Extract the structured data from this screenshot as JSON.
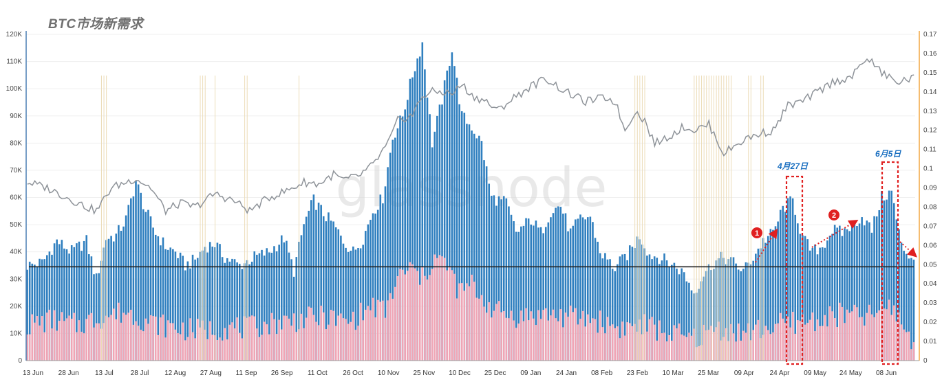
{
  "title": "BTC市场新需求",
  "watermark": "glassnode",
  "chart_data": {
    "type": "bar",
    "x_labels": [
      "13 Jun",
      "28 Jun",
      "13 Jul",
      "28 Jul",
      "12 Aug",
      "27 Aug",
      "11 Sep",
      "26 Sep",
      "11 Oct",
      "26 Oct",
      "10 Nov",
      "25 Nov",
      "10 Dec",
      "25 Dec",
      "09 Jan",
      "24 Jan",
      "08 Feb",
      "23 Feb",
      "10 Mar",
      "25 Mar",
      "09 Apr",
      "24 Apr",
      "09 May",
      "24 May",
      "08 Jun"
    ],
    "y_left": {
      "min": 0,
      "max": 120000,
      "ticks": [
        "0",
        "10K",
        "20K",
        "30K",
        "40K",
        "50K",
        "60K",
        "70K",
        "80K",
        "90K",
        "100K",
        "110K",
        "120K"
      ]
    },
    "y_right": {
      "min": 0,
      "max": 0.17,
      "ticks": [
        "0",
        "0.01",
        "0.02",
        "0.03",
        "0.04",
        "0.05",
        "0.06",
        "0.07",
        "0.08",
        "0.09",
        "0.1",
        "0.11",
        "0.12",
        "0.13",
        "0.14",
        "0.15",
        "0.16",
        "0.17"
      ]
    },
    "baseline_value": 34500,
    "series": [
      {
        "color": "#2f7fbf",
        "anchors": [
          [
            0,
            35000
          ],
          [
            6,
            36000
          ],
          [
            12,
            44000
          ],
          [
            18,
            40000
          ],
          [
            24,
            44000
          ],
          [
            28,
            30000
          ],
          [
            32,
            45000
          ],
          [
            36,
            46000
          ],
          [
            40,
            52000
          ],
          [
            44,
            66000
          ],
          [
            48,
            55000
          ],
          [
            52,
            47000
          ],
          [
            56,
            42000
          ],
          [
            60,
            40000
          ],
          [
            64,
            35000
          ],
          [
            68,
            37000
          ],
          [
            72,
            42000
          ],
          [
            76,
            43000
          ],
          [
            80,
            38000
          ],
          [
            86,
            35000
          ],
          [
            92,
            38000
          ],
          [
            98,
            40000
          ],
          [
            104,
            45000
          ],
          [
            108,
            33000
          ],
          [
            112,
            50000
          ],
          [
            116,
            59000
          ],
          [
            120,
            54000
          ],
          [
            124,
            50000
          ],
          [
            128,
            44000
          ],
          [
            132,
            40000
          ],
          [
            136,
            45000
          ],
          [
            140,
            55000
          ],
          [
            144,
            60000
          ],
          [
            148,
            82000
          ],
          [
            152,
            90000
          ],
          [
            156,
            105000
          ],
          [
            160,
            117000
          ],
          [
            164,
            80000
          ],
          [
            168,
            96000
          ],
          [
            172,
            115000
          ],
          [
            176,
            90000
          ],
          [
            180,
            86000
          ],
          [
            184,
            80000
          ],
          [
            188,
            60000
          ],
          [
            194,
            58000
          ],
          [
            198,
            47000
          ],
          [
            204,
            52000
          ],
          [
            208,
            47000
          ],
          [
            212,
            55000
          ],
          [
            216,
            57000
          ],
          [
            220,
            47000
          ],
          [
            224,
            52000
          ],
          [
            228,
            53000
          ],
          [
            232,
            40000
          ],
          [
            238,
            34000
          ],
          [
            244,
            40000
          ],
          [
            248,
            46000
          ],
          [
            252,
            39000
          ],
          [
            256,
            38000
          ],
          [
            262,
            35000
          ],
          [
            266,
            32000
          ],
          [
            270,
            25000
          ],
          [
            274,
            32000
          ],
          [
            278,
            36000
          ],
          [
            282,
            38000
          ],
          [
            286,
            36000
          ],
          [
            290,
            33000
          ],
          [
            294,
            38000
          ],
          [
            298,
            44000
          ],
          [
            302,
            47000
          ],
          [
            306,
            56000
          ],
          [
            310,
            59000
          ],
          [
            314,
            45000
          ],
          [
            318,
            40000
          ],
          [
            322,
            42000
          ],
          [
            326,
            48000
          ],
          [
            330,
            47000
          ],
          [
            334,
            50000
          ],
          [
            338,
            53000
          ],
          [
            342,
            48000
          ],
          [
            346,
            60000
          ],
          [
            350,
            62000
          ],
          [
            354,
            42000
          ],
          [
            358,
            38000
          ]
        ]
      },
      {
        "color": "#f0a5b5",
        "anchors": [
          [
            0,
            13000
          ],
          [
            10,
            15000
          ],
          [
            20,
            13000
          ],
          [
            30,
            16000
          ],
          [
            40,
            18000
          ],
          [
            50,
            14000
          ],
          [
            60,
            12000
          ],
          [
            70,
            11000
          ],
          [
            80,
            12000
          ],
          [
            90,
            12000
          ],
          [
            100,
            14000
          ],
          [
            110,
            15000
          ],
          [
            120,
            16000
          ],
          [
            130,
            14000
          ],
          [
            140,
            20000
          ],
          [
            145,
            18000
          ],
          [
            150,
            30000
          ],
          [
            155,
            34000
          ],
          [
            160,
            30000
          ],
          [
            165,
            38000
          ],
          [
            170,
            35000
          ],
          [
            175,
            25000
          ],
          [
            180,
            28000
          ],
          [
            185,
            22000
          ],
          [
            190,
            18000
          ],
          [
            200,
            16000
          ],
          [
            210,
            17000
          ],
          [
            220,
            16000
          ],
          [
            230,
            15000
          ],
          [
            240,
            12000
          ],
          [
            250,
            13000
          ],
          [
            260,
            10000
          ],
          [
            270,
            8000
          ],
          [
            280,
            12000
          ],
          [
            290,
            10000
          ],
          [
            300,
            12000
          ],
          [
            310,
            14000
          ],
          [
            320,
            15000
          ],
          [
            330,
            17000
          ],
          [
            340,
            16000
          ],
          [
            350,
            20000
          ],
          [
            358,
            8000
          ]
        ]
      },
      {
        "color": "#8e9399",
        "anchors": [
          [
            0,
            0.093
          ],
          [
            8,
            0.09
          ],
          [
            16,
            0.085
          ],
          [
            24,
            0.08
          ],
          [
            28,
            0.078
          ],
          [
            34,
            0.09
          ],
          [
            44,
            0.095
          ],
          [
            50,
            0.09
          ],
          [
            56,
            0.078
          ],
          [
            62,
            0.082
          ],
          [
            68,
            0.08
          ],
          [
            76,
            0.087
          ],
          [
            84,
            0.083
          ],
          [
            90,
            0.078
          ],
          [
            98,
            0.085
          ],
          [
            106,
            0.089
          ],
          [
            112,
            0.093
          ],
          [
            118,
            0.092
          ],
          [
            124,
            0.097
          ],
          [
            128,
            0.094
          ],
          [
            134,
            0.096
          ],
          [
            140,
            0.102
          ],
          [
            146,
            0.113
          ],
          [
            150,
            0.125
          ],
          [
            156,
            0.128
          ],
          [
            160,
            0.138
          ],
          [
            164,
            0.14
          ],
          [
            168,
            0.14
          ],
          [
            172,
            0.139
          ],
          [
            176,
            0.144
          ],
          [
            180,
            0.138
          ],
          [
            186,
            0.135
          ],
          [
            190,
            0.13
          ],
          [
            196,
            0.136
          ],
          [
            204,
            0.143
          ],
          [
            210,
            0.147
          ],
          [
            218,
            0.14
          ],
          [
            226,
            0.135
          ],
          [
            234,
            0.137
          ],
          [
            238,
            0.135
          ],
          [
            242,
            0.12
          ],
          [
            246,
            0.13
          ],
          [
            250,
            0.125
          ],
          [
            254,
            0.113
          ],
          [
            260,
            0.117
          ],
          [
            266,
            0.122
          ],
          [
            270,
            0.12
          ],
          [
            276,
            0.123
          ],
          [
            282,
            0.108
          ],
          [
            290,
            0.115
          ],
          [
            296,
            0.118
          ],
          [
            302,
            0.12
          ],
          [
            308,
            0.133
          ],
          [
            314,
            0.135
          ],
          [
            320,
            0.14
          ],
          [
            326,
            0.145
          ],
          [
            334,
            0.148
          ],
          [
            340,
            0.158
          ],
          [
            346,
            0.15
          ],
          [
            352,
            0.145
          ],
          [
            358,
            0.147
          ]
        ]
      }
    ],
    "annotations": [
      {
        "label": "4月27日"
      },
      {
        "label": "6月5日"
      },
      {
        "label": "1"
      },
      {
        "label": "2"
      }
    ]
  }
}
